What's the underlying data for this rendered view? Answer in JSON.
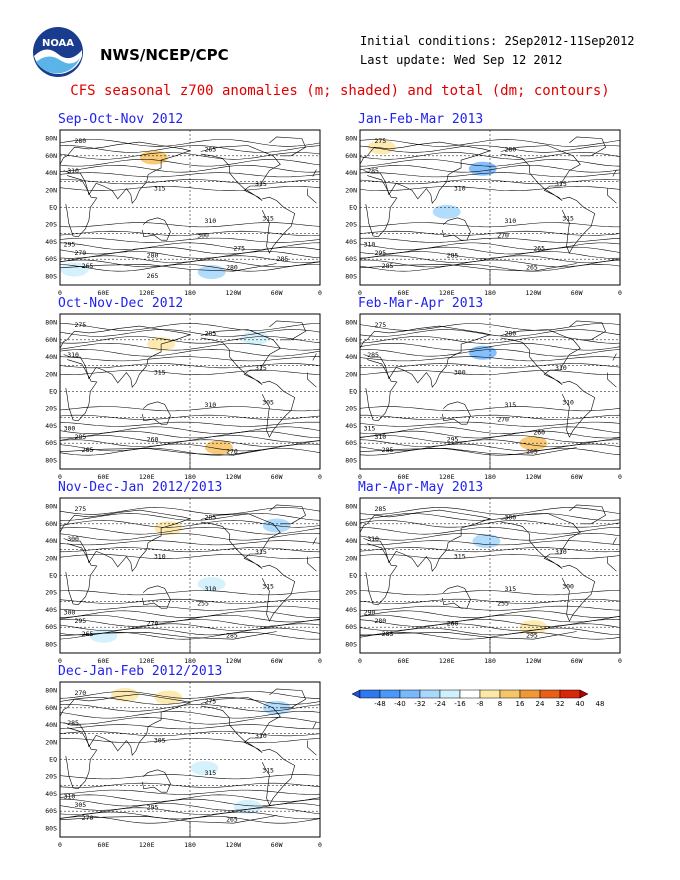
{
  "header": {
    "org": "NWS/NCEP/CPC",
    "logo_text": "NOAA",
    "initial_conditions": "Initial conditions: 2Sep2012-11Sep2012",
    "last_update": "Last update: Wed Sep 12 2012"
  },
  "main_title": "CFS seasonal z700 anomalies (m; shaded) and total (dm; contours)",
  "lat_labels": [
    "80N",
    "60N",
    "40N",
    "20N",
    "EQ",
    "20S",
    "40S",
    "60S",
    "80S"
  ],
  "lon_labels": [
    "0",
    "60E",
    "120E",
    "180",
    "120W",
    "60W",
    "0"
  ],
  "panels": [
    {
      "title": "Sep-Oct-Nov 2012",
      "contour_labels": [
        "280",
        "265",
        "310",
        "315",
        "315",
        "310",
        "315",
        "295",
        "270",
        "280",
        "265",
        "280",
        "300",
        "275",
        "265",
        "285"
      ],
      "anomalies": [
        {
          "lon": 130,
          "lat": 58,
          "v": 24
        },
        {
          "lon": 50,
          "lat": 60,
          "v": 8
        },
        {
          "lon": -120,
          "lat": 62,
          "v": 8
        },
        {
          "lon": -150,
          "lat": -75,
          "v": -16
        },
        {
          "lon": 20,
          "lat": -72,
          "v": -8
        },
        {
          "lon": 90,
          "lat": -68,
          "v": 8
        },
        {
          "lon": -60,
          "lat": -55,
          "v": 8
        }
      ]
    },
    {
      "title": "Jan-Feb-Mar 2013",
      "contour_labels": [
        "275",
        "280",
        "285",
        "310",
        "315",
        "310",
        "315",
        "310",
        "295",
        "285",
        "285",
        "265",
        "270",
        "265"
      ],
      "anomalies": [
        {
          "lon": 30,
          "lat": 70,
          "v": 16
        },
        {
          "lon": 170,
          "lat": 45,
          "v": -24
        },
        {
          "lon": -100,
          "lat": 60,
          "v": 8
        },
        {
          "lon": 120,
          "lat": -5,
          "v": -16
        },
        {
          "lon": -150,
          "lat": -10,
          "v": 8
        },
        {
          "lon": -130,
          "lat": -60,
          "v": 8
        },
        {
          "lon": -20,
          "lat": -20,
          "v": 8
        }
      ]
    },
    {
      "title": "Oct-Nov-Dec 2012",
      "contour_labels": [
        "275",
        "285",
        "310",
        "315",
        "315",
        "310",
        "305",
        "300",
        "285",
        "260",
        "265",
        "270"
      ],
      "anomalies": [
        {
          "lon": 140,
          "lat": 55,
          "v": 16
        },
        {
          "lon": -140,
          "lat": -65,
          "v": 24
        },
        {
          "lon": -40,
          "lat": -45,
          "v": 8
        },
        {
          "lon": -90,
          "lat": 62,
          "v": -8
        },
        {
          "lon": 20,
          "lat": 65,
          "v": 8
        }
      ]
    },
    {
      "title": "Feb-Mar-Apr 2013",
      "contour_labels": [
        "275",
        "280",
        "285",
        "300",
        "310",
        "315",
        "310",
        "315",
        "310",
        "295",
        "285",
        "265",
        "270",
        "260"
      ],
      "anomalies": [
        {
          "lon": 40,
          "lat": 75,
          "v": 8
        },
        {
          "lon": 170,
          "lat": 45,
          "v": -24
        },
        {
          "lon": -100,
          "lat": 62,
          "v": 8
        },
        {
          "lon": -120,
          "lat": -60,
          "v": 24
        },
        {
          "lon": -30,
          "lat": -25,
          "v": 8
        }
      ]
    },
    {
      "title": "Nov-Dec-Jan 2012/2013",
      "contour_labels": [
        "275",
        "285",
        "300",
        "310",
        "315",
        "310",
        "315",
        "300",
        "295",
        "270",
        "265",
        "285",
        "255"
      ],
      "anomalies": [
        {
          "lon": 150,
          "lat": 55,
          "v": 16
        },
        {
          "lon": -60,
          "lat": 58,
          "v": -16
        },
        {
          "lon": -150,
          "lat": -10,
          "v": -8
        },
        {
          "lon": -130,
          "lat": -50,
          "v": 8
        },
        {
          "lon": 60,
          "lat": -70,
          "v": -8
        }
      ]
    },
    {
      "title": "Mar-Apr-May 2013",
      "contour_labels": [
        "285",
        "300",
        "310",
        "315",
        "310",
        "315",
        "300",
        "290",
        "280",
        "260",
        "285",
        "295",
        "255"
      ],
      "anomalies": [
        {
          "lon": 20,
          "lat": 75,
          "v": 8
        },
        {
          "lon": -150,
          "lat": 60,
          "v": 8
        },
        {
          "lon": 175,
          "lat": 40,
          "v": -16
        },
        {
          "lon": -120,
          "lat": -60,
          "v": 16
        },
        {
          "lon": -30,
          "lat": 35,
          "v": 8
        }
      ]
    },
    {
      "title": "Dec-Jan-Feb 2012/2013",
      "contour_labels": [
        "270",
        "275",
        "285",
        "305",
        "310",
        "315",
        "315",
        "310",
        "305",
        "295",
        "270",
        "265"
      ],
      "anomalies": [
        {
          "lon": 90,
          "lat": 75,
          "v": 16
        },
        {
          "lon": 150,
          "lat": 72,
          "v": 16
        },
        {
          "lon": -60,
          "lat": 60,
          "v": -16
        },
        {
          "lon": -160,
          "lat": -10,
          "v": -8
        },
        {
          "lon": -100,
          "lat": -55,
          "v": -8
        }
      ]
    }
  ],
  "colorbar": {
    "labels": [
      "-48",
      "-40",
      "-32",
      "-24",
      "-16",
      "-8",
      "8",
      "16",
      "24",
      "32",
      "40",
      "48"
    ],
    "colors": [
      "#1e50e0",
      "#2e78f0",
      "#4a98f8",
      "#78b8fc",
      "#a8d8fc",
      "#d0f0fc",
      "#ffffff",
      "#fde8a8",
      "#f8c468",
      "#f09838",
      "#e86018",
      "#d82808",
      "#b80000"
    ]
  }
}
